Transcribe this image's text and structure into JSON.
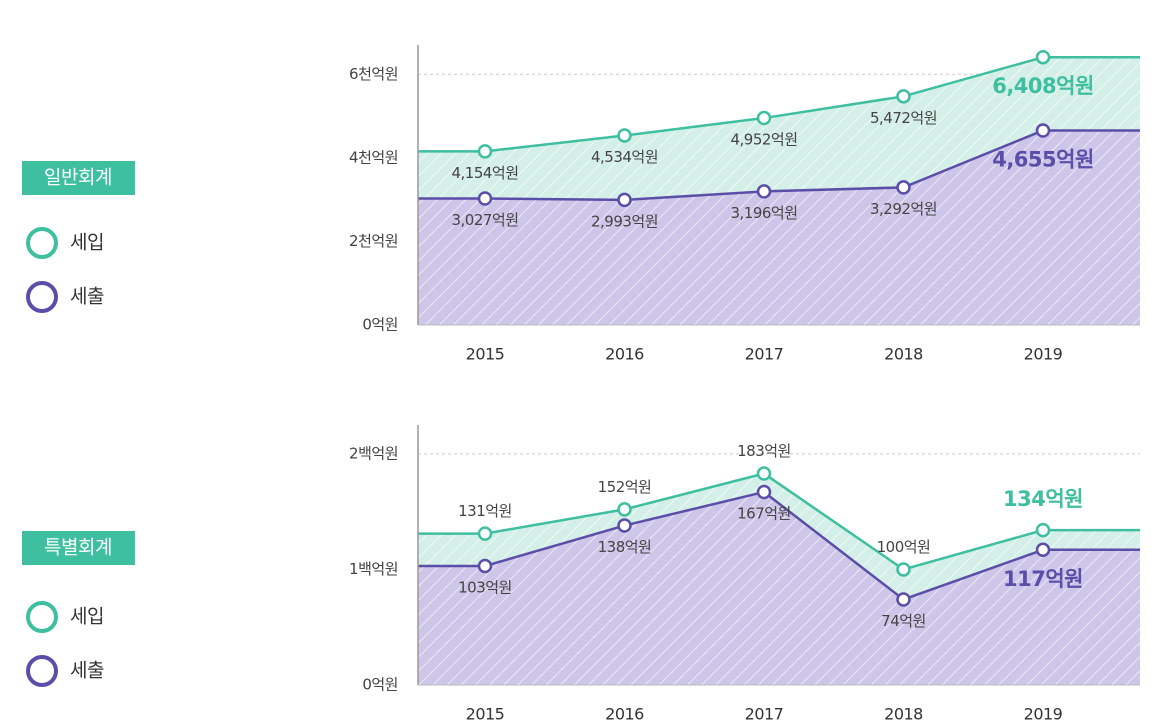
{
  "chart_data": [
    {
      "type": "area",
      "title": "일반회계",
      "categories": [
        "2015",
        "2016",
        "2017",
        "2018",
        "2019"
      ],
      "series": [
        {
          "name": "세입",
          "color": "#3dbfa0",
          "values": [
            4154,
            4534,
            4952,
            5472,
            6408
          ],
          "value_labels": [
            "4,154억원",
            "4,534억원",
            "4,952억원",
            "5,472억원",
            "6,408억원"
          ]
        },
        {
          "name": "세출",
          "color": "#5b4ea8",
          "values": [
            3027,
            2993,
            3196,
            3292,
            4655
          ],
          "value_labels": [
            "3,027억원",
            "2,993억원",
            "3,196억원",
            "3,292억원",
            "4,655억원"
          ]
        }
      ],
      "ylim": [
        0,
        6700
      ],
      "yticks": [
        {
          "value": 0,
          "label": "0억원"
        },
        {
          "value": 2000,
          "label": "2천억원"
        },
        {
          "value": 4000,
          "label": "4천억원"
        },
        {
          "value": 6000,
          "label": "6천억원"
        }
      ],
      "grid": true
    },
    {
      "type": "area",
      "title": "특별회계",
      "categories": [
        "2015",
        "2016",
        "2017",
        "2018",
        "2019"
      ],
      "series": [
        {
          "name": "세입",
          "color": "#3dbfa0",
          "values": [
            131,
            152,
            183,
            100,
            134
          ],
          "value_labels": [
            "131억원",
            "152억원",
            "183억원",
            "100억원",
            "134억원"
          ]
        },
        {
          "name": "세출",
          "color": "#5b4ea8",
          "values": [
            103,
            138,
            167,
            74,
            117
          ],
          "value_labels": [
            "103억원",
            "138억원",
            "167억원",
            "74억원",
            "117억원"
          ]
        }
      ],
      "ylim": [
        0,
        225
      ],
      "yticks": [
        {
          "value": 0,
          "label": "0억원"
        },
        {
          "value": 100,
          "label": "1백억원"
        },
        {
          "value": 200,
          "label": "2백억원"
        }
      ],
      "grid": true
    }
  ]
}
